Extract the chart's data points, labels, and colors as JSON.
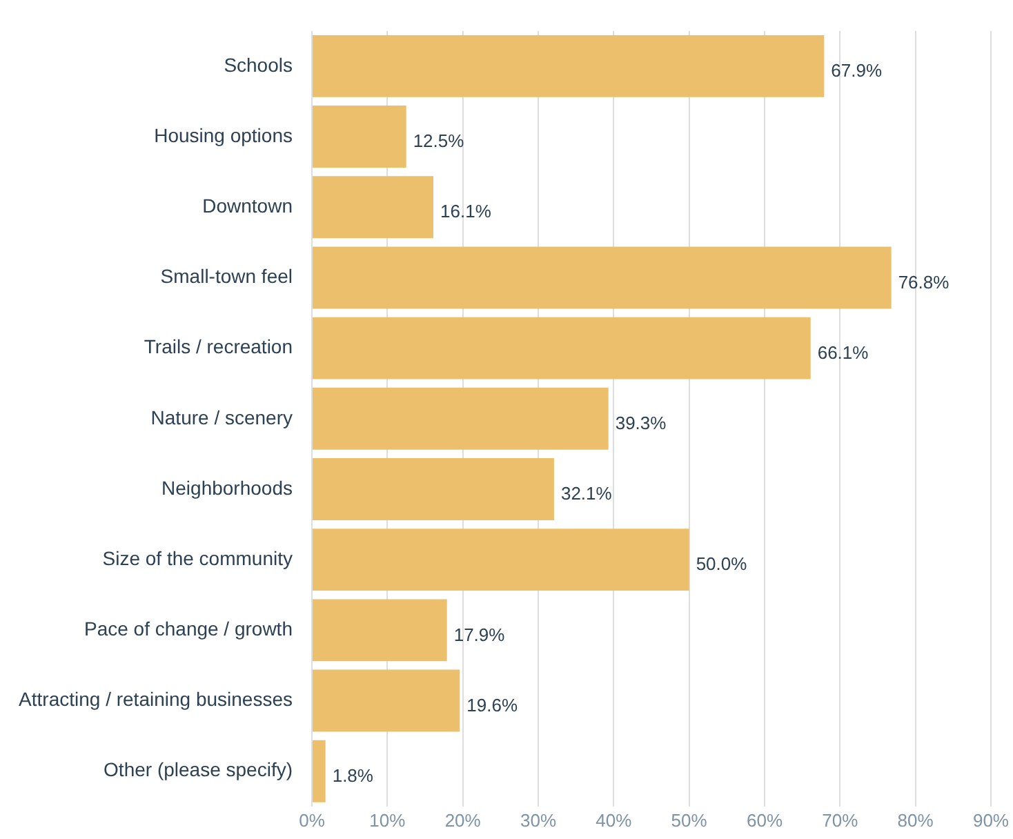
{
  "chart_data": {
    "type": "bar",
    "orientation": "horizontal",
    "categories": [
      "Schools",
      "Housing options",
      "Downtown",
      "Small-town feel",
      "Trails / recreation",
      "Nature / scenery",
      "Neighborhoods",
      "Size of the community",
      "Pace of change / growth",
      "Attracting / retaining businesses",
      "Other (please specify)"
    ],
    "values": [
      67.9,
      12.5,
      16.1,
      76.8,
      66.1,
      39.3,
      32.1,
      50.0,
      17.9,
      19.6,
      1.8
    ],
    "value_labels": [
      "67.9%",
      "12.5%",
      "16.1%",
      "76.8%",
      "66.1%",
      "39.3%",
      "32.1%",
      "50.0%",
      "17.9%",
      "19.6%",
      "1.8%"
    ],
    "color": "#ebbf6c",
    "xlim": [
      0,
      90
    ],
    "xticks": [
      {
        "value": 0,
        "label": "0%"
      },
      {
        "value": 10,
        "label": "10%"
      },
      {
        "value": 20,
        "label": "20%"
      },
      {
        "value": 30,
        "label": "30%"
      },
      {
        "value": 40,
        "label": "40%"
      },
      {
        "value": 50,
        "label": "50%"
      },
      {
        "value": 60,
        "label": "60%"
      },
      {
        "value": 70,
        "label": "70%"
      },
      {
        "value": 80,
        "label": "80%"
      },
      {
        "value": 90,
        "label": "90%"
      }
    ],
    "grid": "x",
    "legend": false
  }
}
